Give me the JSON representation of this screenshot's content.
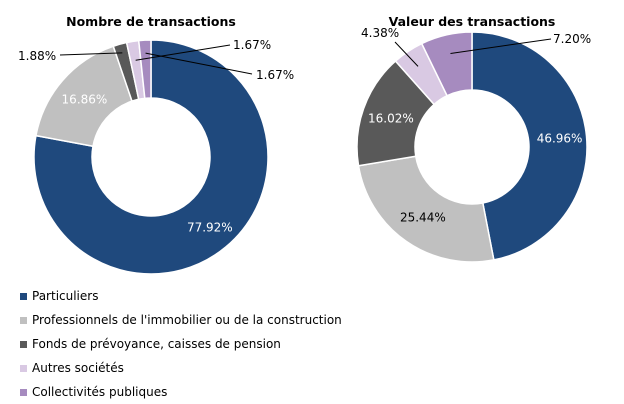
{
  "chart_data": [
    {
      "type": "pie",
      "donut": true,
      "title": "Nombre de transactions",
      "categories": [
        "Particuliers",
        "Professionnels de l'immobilier ou de la construction",
        "Fonds de prévoyance, caisses de pension",
        "Autres sociétés",
        "Collectivités publiques"
      ],
      "values": [
        77.92,
        16.86,
        1.88,
        1.67,
        1.67
      ],
      "labels": [
        "77.92%",
        "16.86%",
        "1.88%",
        "1.67%",
        "1.67%"
      ]
    },
    {
      "type": "pie",
      "donut": true,
      "title": "Valeur des transactions",
      "categories": [
        "Particuliers",
        "Professionnels de l'immobilier ou de la construction",
        "Fonds de prévoyance, caisses de pension",
        "Autres sociétés",
        "Collectivités publiques"
      ],
      "values": [
        46.96,
        25.44,
        16.02,
        4.38,
        7.2
      ],
      "labels": [
        "46.96%",
        "25.44%",
        "16.02%",
        "4.38%",
        "7.20%"
      ]
    }
  ],
  "legend": {
    "position": "bottom-left",
    "items": [
      {
        "label": "Particuliers",
        "color": "#1f497d"
      },
      {
        "label": "Professionnels de l'immobilier ou de la construction",
        "color": "#c0c0c0"
      },
      {
        "label": "Fonds de prévoyance, caisses de pension",
        "color": "#595959"
      },
      {
        "label": "Autres sociétés",
        "color": "#d9c9e3"
      },
      {
        "label": "Collectivités publiques",
        "color": "#a68bbf"
      }
    ]
  }
}
